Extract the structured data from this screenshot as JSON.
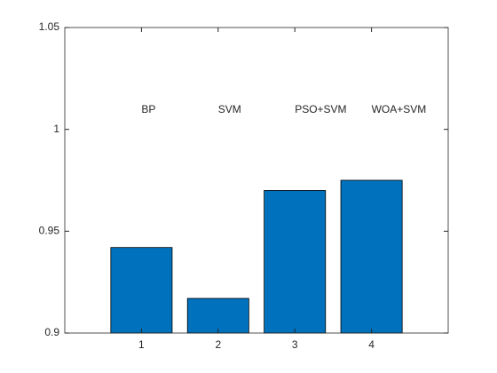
{
  "chart_data": {
    "type": "bar",
    "x": [
      1,
      2,
      3,
      4
    ],
    "values": [
      0.942,
      0.917,
      0.97,
      0.975
    ],
    "annotations": [
      "BP",
      "SVM",
      "PSO+SVM",
      "WOA+SVM"
    ],
    "color": "#0072bd",
    "xlim": [
      0,
      5
    ],
    "xticks": [
      1,
      2,
      3,
      4
    ],
    "ylim": [
      0.9,
      1.05
    ],
    "yticks": [
      0.9,
      0.95,
      1,
      1.05
    ]
  }
}
